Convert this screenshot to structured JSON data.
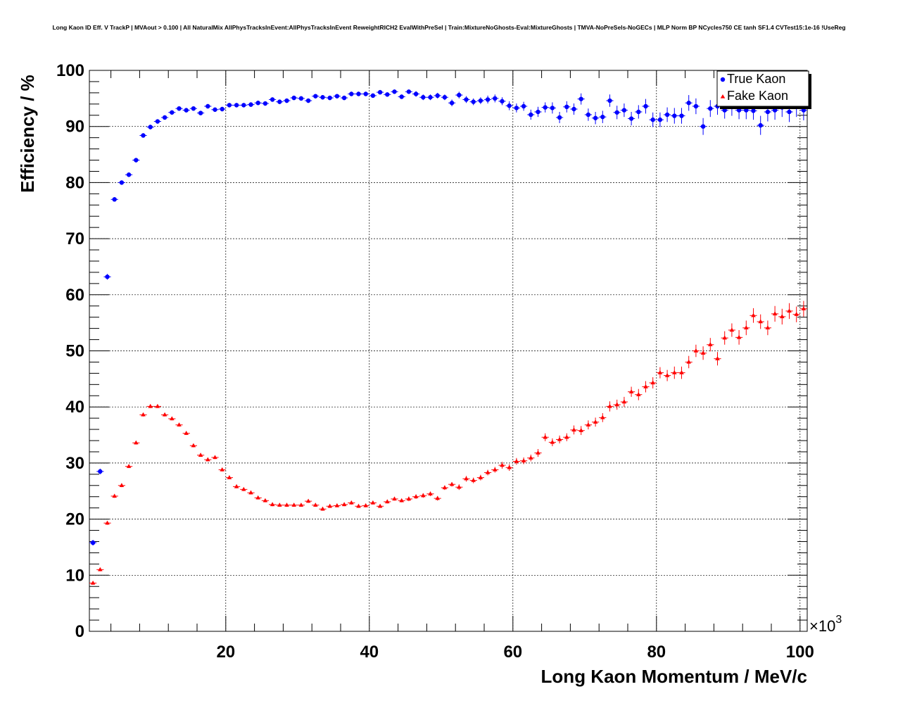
{
  "chart_data": {
    "type": "scatter",
    "title": "Long Kaon ID Eff. V TrackP | MVAout > 0.100 | All NaturalMix AllPhysTracksInEvent:AllPhysTracksInEvent ReweightRICH2 EvalWithPreSel | Train:MixtureNoGhosts-Eval:MixtureGhosts | TMVA-NoPreSels-NoGECs | MLP Norm BP NCycles750 CE tanh SF1.4 CVTest15:1e-16 !UseReg",
    "xlabel": "Long Kaon Momentum / MeV/c",
    "ylabel": "Efficiency / %",
    "x_multiplier": "×10",
    "x_multiplier_exp": "3",
    "xlim": [
      1000,
      101000
    ],
    "ylim": [
      0,
      100
    ],
    "x_ticks": [
      20000,
      40000,
      60000,
      80000,
      100000
    ],
    "x_tick_labels": [
      "20",
      "40",
      "60",
      "80",
      "100"
    ],
    "y_ticks": [
      0,
      10,
      20,
      30,
      40,
      50,
      60,
      70,
      80,
      90,
      100
    ],
    "y_tick_labels": [
      "0",
      "10",
      "20",
      "30",
      "40",
      "50",
      "60",
      "70",
      "80",
      "90",
      "100"
    ],
    "grid": true,
    "legend_position": "top-right",
    "x": [
      1500,
      2500,
      3500,
      4500,
      5500,
      6500,
      7500,
      8500,
      9500,
      10500,
      11500,
      12500,
      13500,
      14500,
      15500,
      16500,
      17500,
      18500,
      19500,
      20500,
      21500,
      22500,
      23500,
      24500,
      25500,
      26500,
      27500,
      28500,
      29500,
      30500,
      31500,
      32500,
      33500,
      34500,
      35500,
      36500,
      37500,
      38500,
      39500,
      40500,
      41500,
      42500,
      43500,
      44500,
      45500,
      46500,
      47500,
      48500,
      49500,
      50500,
      51500,
      52500,
      53500,
      54500,
      55500,
      56500,
      57500,
      58500,
      59500,
      60500,
      61500,
      62500,
      63500,
      64500,
      65500,
      66500,
      67500,
      68500,
      69500,
      70500,
      71500,
      72500,
      73500,
      74500,
      75500,
      76500,
      77500,
      78500,
      79500,
      80500,
      81500,
      82500,
      83500,
      84500,
      85500,
      86500,
      87500,
      88500,
      89500,
      90500,
      91500,
      92500,
      93500,
      94500,
      95500,
      96500,
      97500,
      98500,
      99500,
      100500
    ],
    "series": [
      {
        "name": "True Kaon",
        "color": "#0000ff",
        "marker": "circle",
        "values": [
          15.8,
          28.5,
          63.2,
          77,
          80,
          81.4,
          84,
          88.4,
          89.9,
          90.9,
          91.6,
          92.5,
          93.2,
          92.9,
          93.2,
          92.4,
          93.6,
          93,
          93.1,
          93.8,
          93.8,
          93.8,
          93.9,
          94.2,
          94.1,
          94.8,
          94.4,
          94.6,
          95.1,
          95,
          94.6,
          95.4,
          95.2,
          95.1,
          95.4,
          95.1,
          95.8,
          95.8,
          95.8,
          95.5,
          96.1,
          95.7,
          96.2,
          95.3,
          96.2,
          95.8,
          95.2,
          95.2,
          95.5,
          95.2,
          94.2,
          95.6,
          94.8,
          94.4,
          94.6,
          94.8,
          95,
          94.5,
          93.7,
          93.3,
          93.6,
          92.1,
          92.6,
          93.4,
          93.3,
          91.6,
          93.5,
          93.1,
          94.9,
          92.1,
          91.5,
          91.7,
          94.6,
          92.5,
          92.9,
          91.4,
          92.6,
          93.6,
          91.2,
          91.2,
          92.1,
          91.9,
          91.9,
          94.2,
          93.6,
          90,
          93.2,
          93.6,
          92.9,
          93.5,
          92.9,
          92.9,
          92.8,
          90.2,
          92.6,
          92.9,
          93.4,
          92.6,
          93.5,
          92.9
        ],
        "errors": [
          0.5,
          0.5,
          0.5,
          0.4,
          0.4,
          0.4,
          0.4,
          0.4,
          0.4,
          0.4,
          0.4,
          0.4,
          0.4,
          0.4,
          0.4,
          0.4,
          0.4,
          0.4,
          0.4,
          0.4,
          0.4,
          0.4,
          0.4,
          0.4,
          0.4,
          0.4,
          0.4,
          0.4,
          0.4,
          0.4,
          0.4,
          0.4,
          0.4,
          0.4,
          0.4,
          0.4,
          0.4,
          0.4,
          0.4,
          0.4,
          0.4,
          0.4,
          0.4,
          0.4,
          0.4,
          0.5,
          0.5,
          0.5,
          0.5,
          0.5,
          0.6,
          0.6,
          0.6,
          0.6,
          0.6,
          0.7,
          0.7,
          0.7,
          0.8,
          0.8,
          0.8,
          0.9,
          0.9,
          0.9,
          1,
          1,
          1,
          1,
          1,
          1.1,
          1.1,
          1.1,
          1.1,
          1.2,
          1.2,
          1.2,
          1.2,
          1.3,
          1.3,
          1.3,
          1.3,
          1.4,
          1.4,
          1.4,
          1.4,
          1.5,
          1.5,
          1.5,
          1.5,
          1.6,
          1.6,
          1.6,
          1.6,
          1.7,
          1.7,
          1.7,
          1.7,
          1.8,
          1.8,
          1.8
        ]
      },
      {
        "name": "Fake Kaon",
        "color": "#ff0000",
        "marker": "triangle",
        "values": [
          8.6,
          11,
          19.3,
          24.1,
          26,
          29.4,
          33.6,
          38.6,
          40.1,
          40.1,
          38.6,
          37.9,
          36.8,
          35.3,
          33.1,
          31.4,
          30.6,
          31,
          28.8,
          27.4,
          25.8,
          25.3,
          24.7,
          23.8,
          23.3,
          22.6,
          22.5,
          22.5,
          22.5,
          22.5,
          23.2,
          22.5,
          21.8,
          22.3,
          22.4,
          22.6,
          22.9,
          22.3,
          22.4,
          22.9,
          22.3,
          23.1,
          23.6,
          23.3,
          23.6,
          24,
          24.2,
          24.5,
          23.7,
          25.6,
          26.2,
          25.7,
          27.2,
          26.9,
          27.4,
          28.3,
          28.8,
          29.6,
          29.2,
          30.3,
          30.4,
          30.9,
          31.8,
          34.6,
          33.7,
          34.2,
          34.6,
          35.9,
          35.8,
          36.8,
          37.3,
          38.1,
          40.1,
          40.4,
          40.9,
          42.7,
          42.2,
          43.6,
          44.3,
          46.1,
          45.6,
          46.1,
          46.1,
          48,
          50,
          49.6,
          51.1,
          48.6,
          52.3,
          53.7,
          52.4,
          54.1,
          56.3,
          55.2,
          54.1,
          56.6,
          56.1,
          57.1,
          56.5,
          57.5
        ],
        "errors": [
          0.3,
          0.3,
          0.3,
          0.3,
          0.3,
          0.3,
          0.3,
          0.3,
          0.3,
          0.3,
          0.3,
          0.3,
          0.3,
          0.3,
          0.3,
          0.3,
          0.3,
          0.3,
          0.3,
          0.3,
          0.3,
          0.3,
          0.3,
          0.3,
          0.3,
          0.3,
          0.3,
          0.3,
          0.3,
          0.3,
          0.3,
          0.3,
          0.3,
          0.3,
          0.3,
          0.3,
          0.3,
          0.3,
          0.3,
          0.3,
          0.3,
          0.3,
          0.3,
          0.3,
          0.4,
          0.4,
          0.4,
          0.4,
          0.4,
          0.4,
          0.4,
          0.5,
          0.5,
          0.5,
          0.5,
          0.5,
          0.5,
          0.6,
          0.6,
          0.6,
          0.6,
          0.6,
          0.7,
          0.7,
          0.7,
          0.7,
          0.7,
          0.8,
          0.8,
          0.8,
          0.8,
          0.8,
          0.9,
          0.9,
          0.9,
          0.9,
          1,
          1,
          1,
          1,
          1,
          1.1,
          1.1,
          1.1,
          1.1,
          1.2,
          1.2,
          1.2,
          1.2,
          1.2,
          1.3,
          1.3,
          1.3,
          1.3,
          1.3,
          1.4,
          1.4,
          1.4,
          1.4,
          1.4
        ]
      }
    ]
  }
}
